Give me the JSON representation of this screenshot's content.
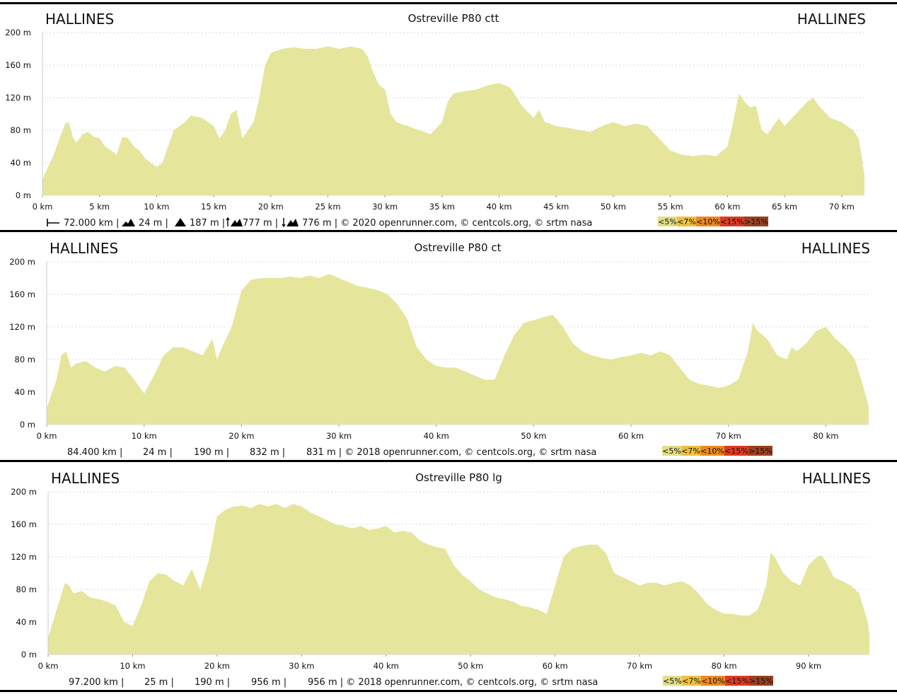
{
  "chart_data": [
    {
      "type": "area",
      "title": "Ostreville P80 ctt",
      "start_label": "HALLINES",
      "end_label": "HALLINES",
      "color": "#e5e59c",
      "x": [
        0,
        1,
        1.5,
        2,
        2.3,
        2.7,
        3,
        3.5,
        4,
        4.5,
        5,
        5.5,
        6,
        6.5,
        7,
        7.5,
        8,
        8.5,
        9,
        10,
        10.5,
        11,
        11.5,
        12.5,
        13,
        14,
        15,
        15.5,
        16,
        16.5,
        17,
        17.5,
        18,
        18.5,
        19,
        19.5,
        20,
        21,
        22,
        23,
        24,
        25,
        26,
        27,
        28,
        28.5,
        29,
        29.5,
        30,
        30.5,
        31,
        32,
        33,
        34,
        35,
        35.5,
        36,
        37,
        38,
        39,
        40,
        41,
        42,
        43,
        43.5,
        44,
        45,
        46,
        47,
        48,
        49,
        50,
        51,
        52,
        53,
        54,
        55,
        56,
        57,
        58,
        59,
        60,
        60.5,
        61,
        61.5,
        62,
        62.5,
        63,
        63.5,
        64,
        64.5,
        65,
        66,
        67,
        67.5,
        68,
        69,
        70,
        71,
        71.5,
        72
      ],
      "values": [
        20,
        50,
        70,
        88,
        90,
        70,
        65,
        75,
        78,
        72,
        70,
        60,
        55,
        50,
        72,
        70,
        60,
        55,
        45,
        35,
        40,
        60,
        80,
        90,
        98,
        95,
        85,
        70,
        80,
        100,
        105,
        70,
        80,
        90,
        120,
        160,
        175,
        180,
        182,
        180,
        180,
        183,
        180,
        183,
        180,
        170,
        150,
        135,
        130,
        100,
        90,
        85,
        80,
        75,
        90,
        115,
        125,
        128,
        130,
        135,
        138,
        132,
        110,
        95,
        105,
        90,
        85,
        83,
        80,
        78,
        85,
        90,
        85,
        88,
        85,
        70,
        55,
        50,
        48,
        50,
        48,
        60,
        90,
        125,
        115,
        108,
        110,
        80,
        75,
        85,
        95,
        85,
        100,
        115,
        120,
        110,
        95,
        90,
        80,
        70,
        25
      ],
      "xlim": [
        0,
        72
      ],
      "ylim": [
        0,
        200
      ],
      "xticks": [
        {
          "value": 0,
          "label": "0 km"
        },
        {
          "value": 5,
          "label": "5 km"
        },
        {
          "value": 10,
          "label": "10 km"
        },
        {
          "value": 15,
          "label": "15 km"
        },
        {
          "value": 20,
          "label": "20 km"
        },
        {
          "value": 25,
          "label": "25 km"
        },
        {
          "value": 30,
          "label": "30 km"
        },
        {
          "value": 35,
          "label": "35 km"
        },
        {
          "value": 40,
          "label": "40 km"
        },
        {
          "value": 45,
          "label": "45 km"
        },
        {
          "value": 50,
          "label": "50 km"
        },
        {
          "value": 55,
          "label": "55 km"
        },
        {
          "value": 60,
          "label": "60 km"
        },
        {
          "value": 65,
          "label": "65 km"
        },
        {
          "value": 70,
          "label": "70 km"
        }
      ],
      "yticks": [
        {
          "value": 0,
          "label": "0 m"
        },
        {
          "value": 40,
          "label": "40 m"
        },
        {
          "value": 80,
          "label": "80 m"
        },
        {
          "value": 120,
          "label": "120 m"
        },
        {
          "value": 160,
          "label": "160 m"
        },
        {
          "value": 200,
          "label": "200 m"
        }
      ],
      "grid": true,
      "stats": [
        "72.000 km |",
        "24 m |",
        "187 m |",
        "777 m |",
        "776 m | © 2020 openrunner.com, © centcols.org, © srtm nasa"
      ],
      "legend": [
        {
          "label": "<5%",
          "color": "#e3dd86"
        },
        {
          "label": "<7%",
          "color": "#f0c03c"
        },
        {
          "label": "<10%",
          "color": "#ee8a1e"
        },
        {
          "label": "<15%",
          "color": "#e03a22"
        },
        {
          "label": ">15%",
          "color": "#9c4020"
        }
      ]
    },
    {
      "type": "area",
      "title": "Ostreville P80 ct",
      "start_label": "HALLINES",
      "end_label": "HALLINES",
      "color": "#e5e59c",
      "x": [
        0,
        1,
        1.5,
        2,
        2.5,
        3,
        4,
        5,
        6,
        7,
        8,
        9,
        10,
        11,
        12,
        13,
        14,
        15,
        16,
        16.5,
        17,
        17.5,
        18,
        19,
        20,
        21,
        22,
        23,
        24,
        25,
        26,
        27,
        28,
        29,
        30,
        31,
        32,
        33,
        34,
        35,
        36,
        37,
        38,
        39,
        40,
        41,
        42,
        43,
        44,
        45,
        46,
        47,
        48,
        49,
        50,
        51,
        52,
        53,
        54,
        55,
        56,
        57,
        58,
        59,
        60,
        61,
        62,
        63,
        64,
        65,
        66,
        67,
        68,
        69,
        70,
        71,
        72,
        72.5,
        73,
        74,
        75,
        76,
        76.5,
        77,
        78,
        79,
        80,
        81,
        82,
        83,
        84,
        84.4
      ],
      "values": [
        20,
        55,
        85,
        90,
        70,
        75,
        78,
        70,
        65,
        72,
        70,
        55,
        38,
        60,
        85,
        95,
        95,
        90,
        85,
        95,
        105,
        80,
        95,
        120,
        165,
        178,
        180,
        180,
        180,
        182,
        180,
        183,
        180,
        185,
        180,
        175,
        170,
        168,
        165,
        160,
        148,
        130,
        95,
        80,
        72,
        70,
        70,
        65,
        60,
        55,
        55,
        85,
        110,
        125,
        128,
        132,
        135,
        120,
        100,
        90,
        85,
        82,
        80,
        83,
        85,
        88,
        85,
        90,
        85,
        70,
        55,
        50,
        48,
        45,
        48,
        55,
        90,
        125,
        115,
        105,
        85,
        80,
        95,
        90,
        100,
        115,
        120,
        105,
        95,
        80,
        40,
        22
      ],
      "xlim": [
        0,
        84.4
      ],
      "ylim": [
        0,
        200
      ],
      "xticks": [
        {
          "value": 0,
          "label": "0 km"
        },
        {
          "value": 10,
          "label": "10 km"
        },
        {
          "value": 20,
          "label": "20 km"
        },
        {
          "value": 30,
          "label": "30 km"
        },
        {
          "value": 40,
          "label": "40 km"
        },
        {
          "value": 50,
          "label": "50 km"
        },
        {
          "value": 60,
          "label": "60 km"
        },
        {
          "value": 70,
          "label": "70 km"
        },
        {
          "value": 80,
          "label": "80 km"
        }
      ],
      "yticks": [
        {
          "value": 0,
          "label": "0 m"
        },
        {
          "value": 40,
          "label": "40 m"
        },
        {
          "value": 80,
          "label": "80 m"
        },
        {
          "value": 120,
          "label": "120 m"
        },
        {
          "value": 160,
          "label": "160 m"
        },
        {
          "value": 200,
          "label": "200 m"
        }
      ],
      "grid": true,
      "stats": [
        "84.400 km |",
        "24 m |",
        "190 m |",
        "832 m |",
        "831 m | © 2018 openrunner.com, © centcols.org, © srtm nasa"
      ],
      "legend": [
        {
          "label": "<5%",
          "color": "#e3dd86"
        },
        {
          "label": "<7%",
          "color": "#f0c03c"
        },
        {
          "label": "<10%",
          "color": "#ee8a1e"
        },
        {
          "label": "<15%",
          "color": "#e03a22"
        },
        {
          "label": ">15%",
          "color": "#9c4020"
        }
      ]
    },
    {
      "type": "area",
      "title": "Ostreville P80 lg",
      "start_label": "HALLINES",
      "end_label": "HALLINES",
      "color": "#e5e59c",
      "x": [
        0,
        1,
        2,
        2.5,
        3,
        4,
        5,
        6,
        7,
        8,
        9,
        10,
        11,
        12,
        13,
        14,
        15,
        16,
        17,
        18,
        19,
        20,
        21,
        22,
        23,
        24,
        25,
        26,
        27,
        28,
        29,
        30,
        31,
        32,
        33,
        34,
        35,
        36,
        37,
        38,
        39,
        40,
        41,
        42,
        43,
        44,
        45,
        46,
        47,
        48,
        49,
        50,
        51,
        52,
        53,
        54,
        55,
        56,
        57,
        58,
        59,
        60,
        61,
        62,
        63,
        64,
        65,
        66,
        67,
        68,
        69,
        70,
        71,
        72,
        73,
        74,
        75,
        76,
        77,
        78,
        79,
        80,
        81,
        82,
        83,
        84,
        85,
        85.5,
        86,
        87,
        88,
        89,
        90,
        91,
        91.5,
        92,
        93,
        94,
        95,
        96,
        97,
        97.2
      ],
      "values": [
        20,
        55,
        88,
        85,
        75,
        78,
        70,
        68,
        65,
        60,
        40,
        35,
        60,
        90,
        100,
        98,
        90,
        85,
        105,
        80,
        115,
        170,
        178,
        182,
        183,
        180,
        185,
        182,
        185,
        180,
        185,
        182,
        175,
        170,
        165,
        160,
        158,
        155,
        158,
        153,
        155,
        158,
        150,
        152,
        150,
        140,
        135,
        132,
        130,
        110,
        98,
        90,
        80,
        75,
        70,
        68,
        65,
        60,
        58,
        55,
        50,
        85,
        120,
        130,
        133,
        135,
        135,
        125,
        100,
        95,
        90,
        85,
        88,
        88,
        85,
        88,
        90,
        85,
        75,
        62,
        55,
        50,
        50,
        48,
        48,
        55,
        85,
        125,
        120,
        100,
        90,
        85,
        110,
        120,
        122,
        115,
        95,
        90,
        85,
        75,
        40,
        25
      ],
      "xlim": [
        0,
        97.2
      ],
      "ylim": [
        0,
        200
      ],
      "xticks": [
        {
          "value": 0,
          "label": "0 km"
        },
        {
          "value": 10,
          "label": "10 km"
        },
        {
          "value": 20,
          "label": "20 km"
        },
        {
          "value": 30,
          "label": "30 km"
        },
        {
          "value": 40,
          "label": "40 km"
        },
        {
          "value": 50,
          "label": "50 km"
        },
        {
          "value": 60,
          "label": "60 km"
        },
        {
          "value": 70,
          "label": "70 km"
        },
        {
          "value": 80,
          "label": "80 km"
        },
        {
          "value": 90,
          "label": "90 km"
        }
      ],
      "yticks": [
        {
          "value": 0,
          "label": "0 m"
        },
        {
          "value": 40,
          "label": "40 m"
        },
        {
          "value": 80,
          "label": "80 m"
        },
        {
          "value": 120,
          "label": "120 m"
        },
        {
          "value": 160,
          "label": "160 m"
        },
        {
          "value": 200,
          "label": "200 m"
        }
      ],
      "grid": true,
      "stats": [
        "97.200 km |",
        "25 m |",
        "190 m |",
        "956 m |",
        "956 m | © 2018 openrunner.com, © centcols.org, © srtm nasa"
      ],
      "legend": [
        {
          "label": "<5%",
          "color": "#e3dd86"
        },
        {
          "label": "<7%",
          "color": "#f0c03c"
        },
        {
          "label": "<10%",
          "color": "#ee8a1e"
        },
        {
          "label": "<15%",
          "color": "#e03a22"
        },
        {
          "label": ">15%",
          "color": "#9c4020"
        }
      ]
    }
  ]
}
